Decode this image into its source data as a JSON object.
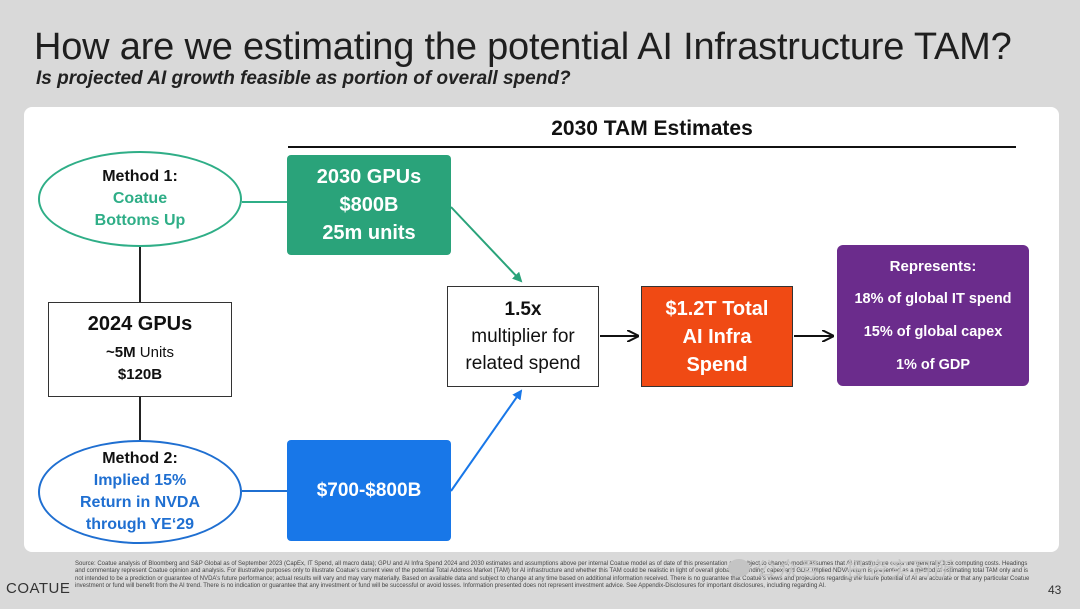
{
  "header": {
    "title": "How are we estimating the potential AI Infrastructure TAM?",
    "subtitle": "Is projected AI growth feasible as portion of overall spend?"
  },
  "diagram": {
    "tam_header": "2030 TAM Estimates",
    "method1": {
      "line1": "Method 1:",
      "line2": "Coatue",
      "line3": "Bottoms Up"
    },
    "gpus_2024": {
      "title": "2024 GPUs",
      "units_bold": "~5M",
      "units_rest": " Units",
      "value": "$120B"
    },
    "method2": {
      "line1": "Method 2:",
      "line2": "Implied 15%",
      "line3": "Return in NVDA",
      "line4": "through YE‘29"
    },
    "gpus_2030": {
      "line1": "2030 GPUs",
      "line2": "$800B",
      "line3": "25m units"
    },
    "range_box": {
      "label": "$700-$800B"
    },
    "multiplier": {
      "line1": "1.5x",
      "line2": "multiplier for",
      "line3": "related spend"
    },
    "total": {
      "line1": "$1.2T Total",
      "line2": "AI Infra",
      "line3": "Spend"
    },
    "represents": {
      "heading": "Represents:",
      "items": [
        "18% of global IT spend",
        "15% of global capex",
        "1% of GDP"
      ]
    }
  },
  "footer": {
    "disclaimer": "Source: Coatue analysis of Bloomberg and S&P Global as of September 2023 (CapEx, IT Spend, all macro data); GPU and AI Infra Spend 2024 and 2030 estimates and assumptions above per internal Coatue model as of date of this presentation and subject to change; model assumes that AI infrastructure costs are generally 1.5x computing costs. Headings and commentary represent Coatue opinion and analysis. For illustrative purposes only to illustrate Coatue’s current view of the potential Total Address Market (TAM) for AI infrastructure and whether this TAM could be realistic in light of overall global IT spending, capex and GDP. Implied NDVA return is presented as a method of estimating total TAM only and is not intended to be a prediction or guarantee of NVDA’s future performance; actual results will vary and may vary materially. Based on available data and subject to change at any time based on additional information received. There is no guarantee that Coatue’s views and projections regarding the future potential of AI are accurate or that any particular Coatue investment or fund will benefit from the AI trend. There is no indication or guarantee that any investment or fund will be successful or avoid losses. Information presented does not represent investment advice. See Appendix-Disclosures for important disclosures, including regarding AI.",
    "brand": "COATUE",
    "page_number": "43",
    "watermark": "公众号 · 投资实习所"
  },
  "colors": {
    "green_box": "#2aa37a",
    "green_text": "#2fae87",
    "blue_box": "#1877e8",
    "blue_text": "#1f6fd1",
    "orange_box": "#f04a14",
    "purple_box": "#6b2c8c"
  }
}
